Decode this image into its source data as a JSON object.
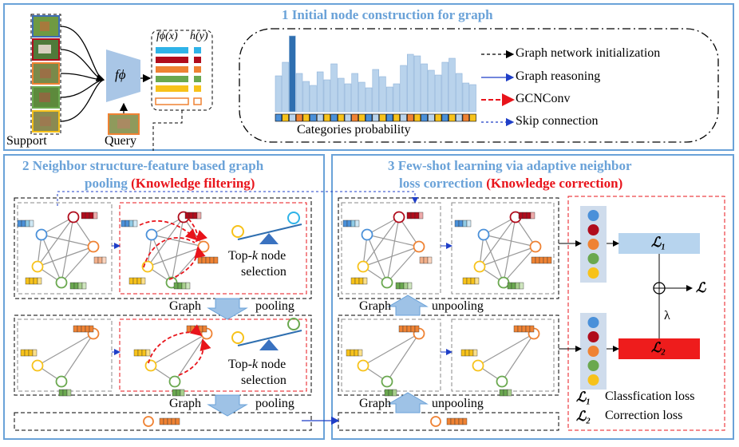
{
  "section1": {
    "title": "1 Initial node construction for graph",
    "support_label": "Support",
    "query_label": "Query",
    "encoder_symbol": "fϕ",
    "feature_header_f": "fϕ(x)",
    "feature_header_h": "h(y)",
    "histogram_caption": "Categories probability",
    "legend": [
      {
        "label": "Graph network initialization",
        "style": "black-dashed"
      },
      {
        "label": "Graph reasoning",
        "style": "blue-solid"
      },
      {
        "label": "GCNConv",
        "style": "red-dashed"
      },
      {
        "label": "Skip connection",
        "style": "blue-dashed"
      }
    ]
  },
  "section2": {
    "title_line1": "2 Neighbor structure-feature based graph",
    "title_line2": "pooling",
    "title_highlight": "(Knowledge filtering)",
    "topk_line1": "Top-",
    "topk_k": "k",
    "topk_node": " node",
    "topk_line2": "selection",
    "graph_pooling_word1": "Graph",
    "graph_pooling_word2": "pooling"
  },
  "section3": {
    "title_line1": "3 Few-shot learning via adaptive neighbor",
    "title_line2": "loss correction",
    "title_highlight": "(Knowledge correction)",
    "graph_unpooling_word1": "Graph",
    "graph_unpooling_word2": "unpooling",
    "loss1_symbol": "ℒ₁",
    "loss2_symbol": "ℒ₂",
    "loss_symbol": "ℒ",
    "lambda": "λ",
    "loss1_desc": "Classfication loss",
    "loss2_desc": "Correction loss"
  },
  "colors": {
    "panel_border": "#6aa2d8",
    "title_blue": "#6aa2d8",
    "highlight_red": "#e8141b",
    "bar_fill": "#b9d3ec",
    "bar_highlight": "#2f6fb0",
    "loss1_fill": "#b7d4ee",
    "loss2_fill": "#ee1c1c",
    "node_colors": [
      "#4a90d9",
      "#b00c1c",
      "#ef8233",
      "#6aa84f",
      "#f7c21a"
    ]
  },
  "histogram": {
    "values": [
      0.45,
      0.62,
      0.95,
      0.48,
      0.38,
      0.33,
      0.5,
      0.4,
      0.6,
      0.42,
      0.35,
      0.48,
      0.37,
      0.3,
      0.53,
      0.44,
      0.31,
      0.35,
      0.58,
      0.72,
      0.7,
      0.6,
      0.52,
      0.46,
      0.62,
      0.67,
      0.48,
      0.36,
      0.34
    ],
    "highlight_index": 2
  }
}
